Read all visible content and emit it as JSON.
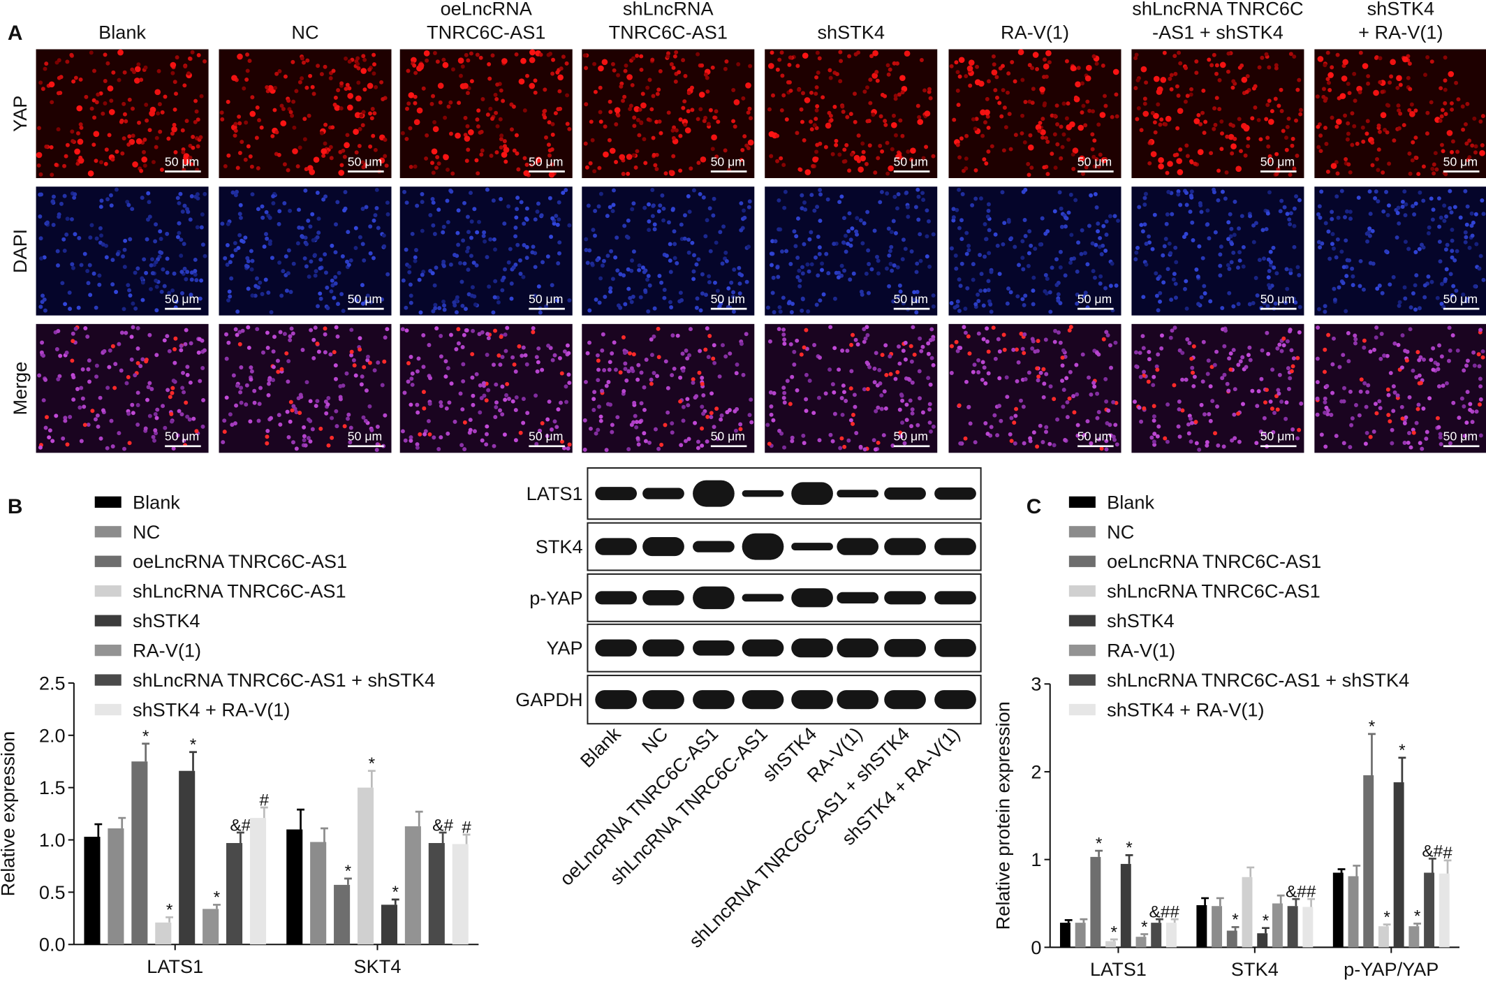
{
  "panel_a": {
    "label": "A",
    "columns": [
      [
        "Blank"
      ],
      [
        "NC"
      ],
      [
        "oeLncRNA",
        "TNRC6C-AS1"
      ],
      [
        "shLncRNA",
        "TNRC6C-AS1"
      ],
      [
        "shSTK4"
      ],
      [
        "RA-V(1)"
      ],
      [
        "shLncRNA TNRC6C",
        "-AS1 + shSTK4"
      ],
      [
        "shSTK4",
        "+ RA-V(1)"
      ]
    ],
    "rows": [
      "YAP",
      "DAPI",
      "Merge"
    ],
    "scale_bar": "50 μm"
  },
  "blot": {
    "rows": [
      "LATS1",
      "STK4",
      "p-YAP",
      "YAP",
      "GAPDH"
    ],
    "lanes": [
      "Blank",
      "NC",
      "oeLncRNA TNRC6C-AS1",
      "shLncRNA TNRC6C-AS1",
      "shSTK4",
      "RA-V(1)",
      "shLncRNA TNRC6C-AS1 + shSTK4",
      "shSTK4 + RA-V(1)"
    ]
  },
  "chart_data": [
    {
      "type": "bar",
      "label": "B",
      "y_label": "Relative expression",
      "categories": [
        "LATS1",
        "SKT4"
      ],
      "ylim": [
        0,
        2.5
      ],
      "yticks": [
        {
          "value": 0,
          "label": "0.0"
        },
        {
          "value": 0.5,
          "label": "0.5"
        },
        {
          "value": 1,
          "label": "1.0"
        },
        {
          "value": 1.5,
          "label": "1.5"
        },
        {
          "value": 2,
          "label": "2.0"
        },
        {
          "value": 2.5,
          "label": "2.5"
        }
      ],
      "series": [
        {
          "name": "Blank",
          "color": "#000000",
          "values": [
            1.03,
            1.1
          ],
          "errors": [
            0.12,
            0.19
          ],
          "annotations": [
            null,
            null
          ]
        },
        {
          "name": "NC",
          "color": "#8c8c8c",
          "values": [
            1.11,
            0.98
          ],
          "errors": [
            0.1,
            0.13
          ],
          "annotations": [
            null,
            null
          ]
        },
        {
          "name": "oeLncRNA TNRC6C-AS1",
          "color": "#6e6e6e",
          "values": [
            1.75,
            0.57
          ],
          "errors": [
            0.17,
            0.06
          ],
          "annotations": [
            "*",
            "*"
          ]
        },
        {
          "name": "shLncRNA TNRC6C-AS1",
          "color": "#d0d0d0",
          "values": [
            0.21,
            1.5
          ],
          "errors": [
            0.05,
            0.16
          ],
          "annotations": [
            "*",
            "*"
          ]
        },
        {
          "name": "shSTK4",
          "color": "#3c3c3c",
          "values": [
            1.66,
            0.38
          ],
          "errors": [
            0.18,
            0.05
          ],
          "annotations": [
            "*",
            "*"
          ]
        },
        {
          "name": "RA-V(1)",
          "color": "#939393",
          "values": [
            0.34,
            1.13
          ],
          "errors": [
            0.04,
            0.14
          ],
          "annotations": [
            "*",
            null
          ]
        },
        {
          "name": "shLncRNA TNRC6C-AS1 + shSTK4",
          "color": "#4a4a4a",
          "values": [
            0.97,
            0.97
          ],
          "errors": [
            0.1,
            0.1
          ],
          "annotations": [
            "&#",
            "&#"
          ]
        },
        {
          "name": "shSTK4 + RA-V(1)",
          "color": "#e6e6e6",
          "values": [
            1.21,
            0.96
          ],
          "errors": [
            0.1,
            0.09
          ],
          "annotations": [
            "#",
            "#"
          ]
        }
      ]
    },
    {
      "type": "bar",
      "label": "C",
      "y_label": "Relative protein expression",
      "categories": [
        "LATS1",
        "STK4",
        "p-YAP/YAP"
      ],
      "ylim": [
        0,
        3
      ],
      "yticks": [
        0,
        1,
        2,
        3
      ],
      "series": [
        {
          "name": "Blank",
          "color": "#000000",
          "values": [
            0.28,
            0.48,
            0.85
          ],
          "errors": [
            0.03,
            0.08,
            0.04
          ],
          "annotations": [
            null,
            null,
            null
          ]
        },
        {
          "name": "NC",
          "color": "#8c8c8c",
          "values": [
            0.28,
            0.47,
            0.81
          ],
          "errors": [
            0.04,
            0.09,
            0.12
          ],
          "annotations": [
            null,
            null,
            null
          ]
        },
        {
          "name": "oeLncRNA TNRC6C-AS1",
          "color": "#6e6e6e",
          "values": [
            1.03,
            0.19,
            1.96
          ],
          "errors": [
            0.07,
            0.04,
            0.47
          ],
          "annotations": [
            "*",
            "*",
            "*"
          ]
        },
        {
          "name": "shLncRNA TNRC6C-AS1",
          "color": "#d0d0d0",
          "values": [
            0.07,
            0.8,
            0.24
          ],
          "errors": [
            0.02,
            0.11,
            0.02
          ],
          "annotations": [
            "*",
            null,
            "*"
          ]
        },
        {
          "name": "shSTK4",
          "color": "#3c3c3c",
          "values": [
            0.95,
            0.16,
            1.88
          ],
          "errors": [
            0.1,
            0.06,
            0.28
          ],
          "annotations": [
            "*",
            "*",
            "*"
          ]
        },
        {
          "name": "RA-V(1)",
          "color": "#939393",
          "values": [
            0.12,
            0.5,
            0.24
          ],
          "errors": [
            0.03,
            0.09,
            0.03
          ],
          "annotations": [
            "*",
            null,
            "*"
          ]
        },
        {
          "name": "shLncRNA TNRC6C-AS1 + shSTK4",
          "color": "#4a4a4a",
          "values": [
            0.28,
            0.47,
            0.85
          ],
          "errors": [
            0.04,
            0.08,
            0.16
          ],
          "annotations": [
            "&#",
            "&#",
            "&#"
          ]
        },
        {
          "name": "shSTK4 + RA-V(1)",
          "color": "#e6e6e6",
          "values": [
            0.28,
            0.46,
            0.84
          ],
          "errors": [
            0.04,
            0.09,
            0.15
          ],
          "annotations": [
            "#",
            "#",
            "#"
          ]
        }
      ]
    }
  ]
}
